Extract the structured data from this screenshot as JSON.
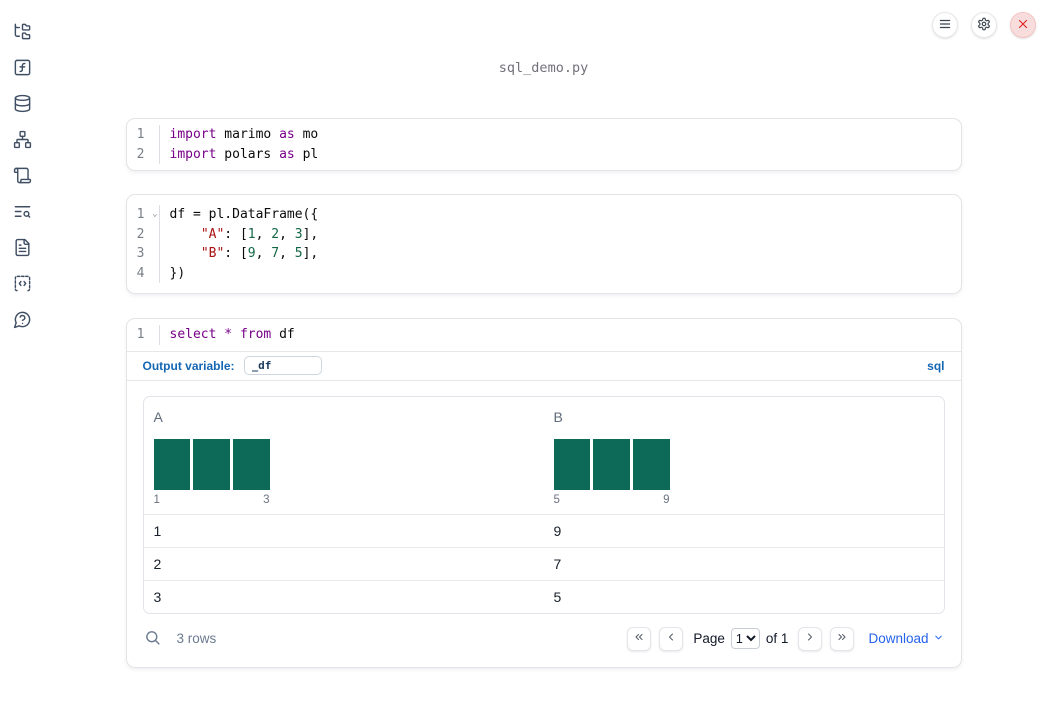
{
  "window": {
    "title": "sql_demo.py"
  },
  "colors": {
    "accent_blue": "#1467b4",
    "link_blue": "#2563eb",
    "histogram_teal": "#0e6a58",
    "close_red": "#dc2626",
    "syntax_keyword": "#770088",
    "syntax_string": "#aa1111",
    "syntax_number": "#116644"
  },
  "topbar": {
    "buttons": [
      {
        "icon": "hamburger-menu-icon"
      },
      {
        "icon": "gear-icon"
      },
      {
        "icon": "close-icon"
      }
    ]
  },
  "sidebar": {
    "items": [
      {
        "icon": "file-tree-icon"
      },
      {
        "icon": "function-square-icon"
      },
      {
        "icon": "database-icon"
      },
      {
        "icon": "dependency-graph-icon"
      },
      {
        "icon": "scroll-logs-icon"
      },
      {
        "icon": "list-search-icon"
      },
      {
        "icon": "document-icon"
      },
      {
        "icon": "code-snippets-icon"
      },
      {
        "icon": "help-bubble-icon"
      }
    ]
  },
  "cells": {
    "imports": {
      "lines": [
        {
          "num": "1",
          "tokens": [
            [
              "kw",
              "import"
            ],
            [
              "t",
              " marimo "
            ],
            [
              "kw",
              "as"
            ],
            [
              "t",
              " mo"
            ]
          ]
        },
        {
          "num": "2",
          "tokens": [
            [
              "kw",
              "import"
            ],
            [
              "t",
              " polars "
            ],
            [
              "kw",
              "as"
            ],
            [
              "t",
              " pl"
            ]
          ]
        }
      ]
    },
    "dataframe": {
      "lines": [
        {
          "num": "1",
          "fold": true,
          "tokens": [
            [
              "t",
              "df = pl.DataFrame({"
            ]
          ]
        },
        {
          "num": "2",
          "tokens": [
            [
              "t",
              "    "
            ],
            [
              "str",
              "\"A\""
            ],
            [
              "t",
              ": ["
            ],
            [
              "num",
              "1"
            ],
            [
              "t",
              ", "
            ],
            [
              "num",
              "2"
            ],
            [
              "t",
              ", "
            ],
            [
              "num",
              "3"
            ],
            [
              "t",
              "],"
            ]
          ]
        },
        {
          "num": "3",
          "tokens": [
            [
              "t",
              "    "
            ],
            [
              "str",
              "\"B\""
            ],
            [
              "t",
              ": ["
            ],
            [
              "num",
              "9"
            ],
            [
              "t",
              ", "
            ],
            [
              "num",
              "7"
            ],
            [
              "t",
              ", "
            ],
            [
              "num",
              "5"
            ],
            [
              "t",
              "],"
            ]
          ]
        },
        {
          "num": "4",
          "tokens": [
            [
              "t",
              "})"
            ]
          ]
        }
      ]
    },
    "sql": {
      "lines": [
        {
          "num": "1",
          "tokens": [
            [
              "kw",
              "select"
            ],
            [
              "t",
              " "
            ],
            [
              "op",
              "*"
            ],
            [
              "t",
              " "
            ],
            [
              "kw",
              "from"
            ],
            [
              "t",
              " df"
            ]
          ]
        }
      ],
      "output_variable_label": "Output variable:",
      "output_variable_value": "_df",
      "language_badge": "sql"
    }
  },
  "table": {
    "columns": [
      {
        "label": "A",
        "hist": {
          "bars": [
            1,
            1,
            1
          ],
          "min_label": "1",
          "max_label": "3"
        }
      },
      {
        "label": "B",
        "hist": {
          "bars": [
            1,
            1,
            1
          ],
          "min_label": "5",
          "max_label": "9"
        }
      }
    ],
    "rows": [
      [
        "1",
        "9"
      ],
      [
        "2",
        "7"
      ],
      [
        "3",
        "5"
      ]
    ],
    "footer": {
      "row_count": "3 rows",
      "page_label": "Page",
      "page_value": "1",
      "of_label": "of 1",
      "download_label": "Download"
    }
  }
}
